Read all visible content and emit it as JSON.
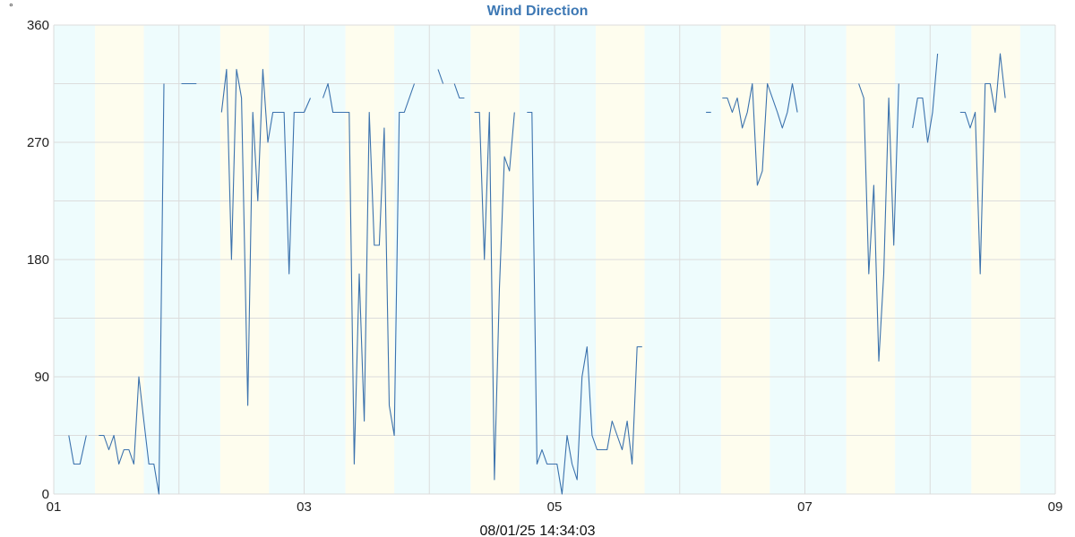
{
  "chart_data": {
    "type": "line",
    "title": "Wind Direction",
    "unit": "°",
    "timestamp": "08/01/25 14:34:03",
    "y_ticks": [
      0,
      90,
      180,
      270,
      360
    ],
    "ylim": [
      0,
      360
    ],
    "x_ticks": [
      "01",
      "03",
      "05",
      "07",
      "09"
    ],
    "xlim_days": [
      1,
      9
    ],
    "grid": true,
    "colors": {
      "line": "#3b72ad",
      "night_band": "#eefcfd",
      "day_band": "#fefdee",
      "grid": "#dcdcdc",
      "title": "#3d78b4"
    },
    "shading": [
      {
        "start": 1.0,
        "end": 1.33,
        "kind": "night"
      },
      {
        "start": 1.33,
        "end": 1.72,
        "kind": "day"
      },
      {
        "start": 1.72,
        "end": 2.33,
        "kind": "night"
      },
      {
        "start": 2.33,
        "end": 2.72,
        "kind": "day"
      },
      {
        "start": 2.72,
        "end": 3.33,
        "kind": "night"
      },
      {
        "start": 3.33,
        "end": 3.72,
        "kind": "day"
      },
      {
        "start": 3.72,
        "end": 4.33,
        "kind": "night"
      },
      {
        "start": 4.33,
        "end": 4.72,
        "kind": "day"
      },
      {
        "start": 4.72,
        "end": 5.33,
        "kind": "night"
      },
      {
        "start": 5.33,
        "end": 5.72,
        "kind": "day"
      },
      {
        "start": 5.72,
        "end": 6.33,
        "kind": "night"
      },
      {
        "start": 6.33,
        "end": 6.72,
        "kind": "day"
      },
      {
        "start": 6.72,
        "end": 7.33,
        "kind": "night"
      },
      {
        "start": 7.33,
        "end": 7.72,
        "kind": "day"
      },
      {
        "start": 7.72,
        "end": 8.33,
        "kind": "night"
      },
      {
        "start": 8.33,
        "end": 8.72,
        "kind": "day"
      },
      {
        "start": 8.72,
        "end": 9.0,
        "kind": "night"
      }
    ],
    "segments": [
      [
        [
          1.12,
          45
        ],
        [
          1.16,
          23
        ],
        [
          1.21,
          23
        ],
        [
          1.26,
          45
        ]
      ],
      [
        [
          1.36,
          45
        ],
        [
          1.4,
          45
        ],
        [
          1.44,
          34
        ],
        [
          1.48,
          45
        ],
        [
          1.52,
          23
        ],
        [
          1.56,
          34
        ],
        [
          1.6,
          34
        ],
        [
          1.64,
          23
        ],
        [
          1.68,
          90
        ],
        [
          1.72,
          56
        ],
        [
          1.76,
          23
        ],
        [
          1.8,
          23
        ],
        [
          1.84,
          0
        ],
        [
          1.88,
          315
        ]
      ],
      [
        [
          2.02,
          315
        ],
        [
          2.07,
          315
        ],
        [
          2.14,
          315
        ]
      ],
      [
        [
          2.34,
          293
        ],
        [
          2.38,
          326
        ],
        [
          2.42,
          180
        ],
        [
          2.46,
          326
        ],
        [
          2.5,
          304
        ],
        [
          2.55,
          68
        ],
        [
          2.59,
          293
        ],
        [
          2.63,
          225
        ],
        [
          2.67,
          326
        ],
        [
          2.71,
          270
        ],
        [
          2.75,
          293
        ],
        [
          2.79,
          293
        ],
        [
          2.84,
          293
        ],
        [
          2.88,
          169
        ],
        [
          2.92,
          293
        ],
        [
          2.96,
          293
        ],
        [
          3.0,
          293
        ],
        [
          3.05,
          304
        ]
      ],
      [
        [
          3.15,
          304
        ],
        [
          3.19,
          315
        ],
        [
          3.23,
          293
        ],
        [
          3.28,
          293
        ],
        [
          3.32,
          293
        ],
        [
          3.36,
          293
        ],
        [
          3.4,
          23
        ],
        [
          3.44,
          169
        ],
        [
          3.48,
          56
        ],
        [
          3.52,
          293
        ],
        [
          3.56,
          191
        ],
        [
          3.6,
          191
        ],
        [
          3.64,
          281
        ],
        [
          3.68,
          68
        ],
        [
          3.72,
          45
        ],
        [
          3.76,
          293
        ],
        [
          3.8,
          293
        ],
        [
          3.84,
          304
        ],
        [
          3.88,
          315
        ]
      ],
      [
        [
          4.07,
          326
        ],
        [
          4.11,
          315
        ]
      ],
      [
        [
          4.2,
          315
        ],
        [
          4.24,
          304
        ],
        [
          4.28,
          304
        ]
      ],
      [
        [
          4.36,
          293
        ],
        [
          4.4,
          293
        ],
        [
          4.44,
          180
        ],
        [
          4.48,
          293
        ],
        [
          4.52,
          11
        ],
        [
          4.56,
          158
        ],
        [
          4.6,
          259
        ],
        [
          4.64,
          248
        ],
        [
          4.68,
          293
        ]
      ],
      [
        [
          4.78,
          293
        ],
        [
          4.82,
          293
        ],
        [
          4.86,
          23
        ],
        [
          4.9,
          34
        ],
        [
          4.94,
          23
        ],
        [
          4.98,
          23
        ],
        [
          5.02,
          23
        ],
        [
          5.06,
          0
        ],
        [
          5.1,
          45
        ],
        [
          5.14,
          23
        ],
        [
          5.18,
          11
        ],
        [
          5.22,
          90
        ],
        [
          5.26,
          113
        ],
        [
          5.3,
          45
        ],
        [
          5.34,
          34
        ],
        [
          5.38,
          34
        ],
        [
          5.42,
          34
        ],
        [
          5.46,
          56
        ],
        [
          5.5,
          45
        ],
        [
          5.54,
          34
        ],
        [
          5.58,
          56
        ],
        [
          5.62,
          23
        ],
        [
          5.66,
          113
        ],
        [
          5.7,
          113
        ]
      ],
      [
        [
          6.21,
          293
        ],
        [
          6.25,
          293
        ]
      ],
      [
        [
          6.34,
          304
        ],
        [
          6.38,
          304
        ],
        [
          6.42,
          293
        ],
        [
          6.46,
          304
        ],
        [
          6.5,
          281
        ],
        [
          6.54,
          293
        ],
        [
          6.58,
          315
        ],
        [
          6.62,
          237
        ],
        [
          6.66,
          248
        ],
        [
          6.7,
          315
        ],
        [
          6.74,
          304
        ],
        [
          6.78,
          293
        ],
        [
          6.82,
          281
        ],
        [
          6.86,
          293
        ],
        [
          6.9,
          315
        ],
        [
          6.94,
          293
        ]
      ],
      [
        [
          7.43,
          315
        ],
        [
          7.47,
          304
        ],
        [
          7.51,
          169
        ],
        [
          7.55,
          237
        ],
        [
          7.59,
          102
        ],
        [
          7.63,
          169
        ],
        [
          7.67,
          304
        ],
        [
          7.71,
          191
        ],
        [
          7.75,
          315
        ]
      ],
      [
        [
          7.86,
          281
        ],
        [
          7.9,
          304
        ],
        [
          7.94,
          304
        ],
        [
          7.98,
          270
        ],
        [
          8.02,
          293
        ],
        [
          8.06,
          338
        ]
      ],
      [
        [
          8.24,
          293
        ],
        [
          8.28,
          293
        ],
        [
          8.32,
          281
        ],
        [
          8.36,
          293
        ],
        [
          8.4,
          169
        ],
        [
          8.44,
          315
        ],
        [
          8.48,
          315
        ],
        [
          8.52,
          293
        ],
        [
          8.56,
          338
        ],
        [
          8.6,
          304
        ]
      ]
    ]
  }
}
